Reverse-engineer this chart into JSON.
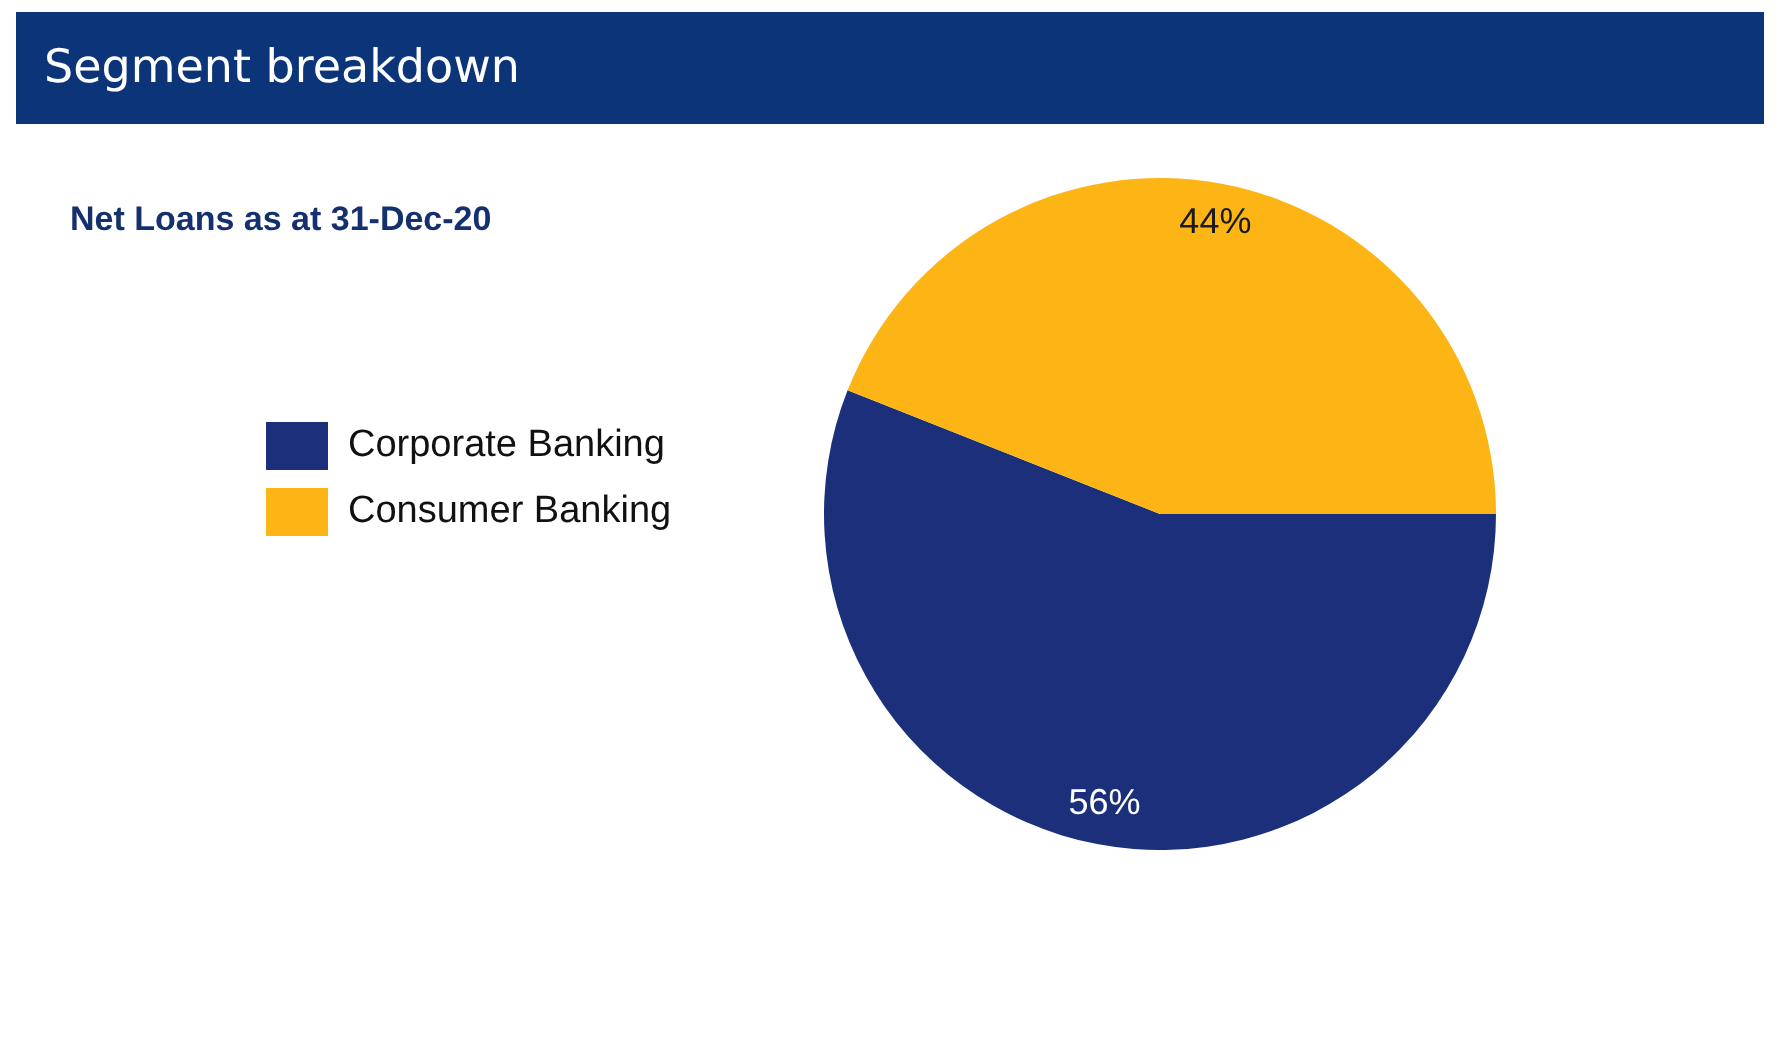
{
  "chart_data": {
    "type": "pie",
    "title": "Segment breakdown",
    "subtitle": "Net Loans as at 31-Dec-20",
    "categories": [
      "Corporate Banking",
      "Consumer Banking"
    ],
    "values": [
      56,
      44
    ],
    "colors": [
      "#1b2f7b",
      "#fdb515"
    ],
    "value_labels": [
      "56%",
      "44%"
    ],
    "legend": "left"
  }
}
